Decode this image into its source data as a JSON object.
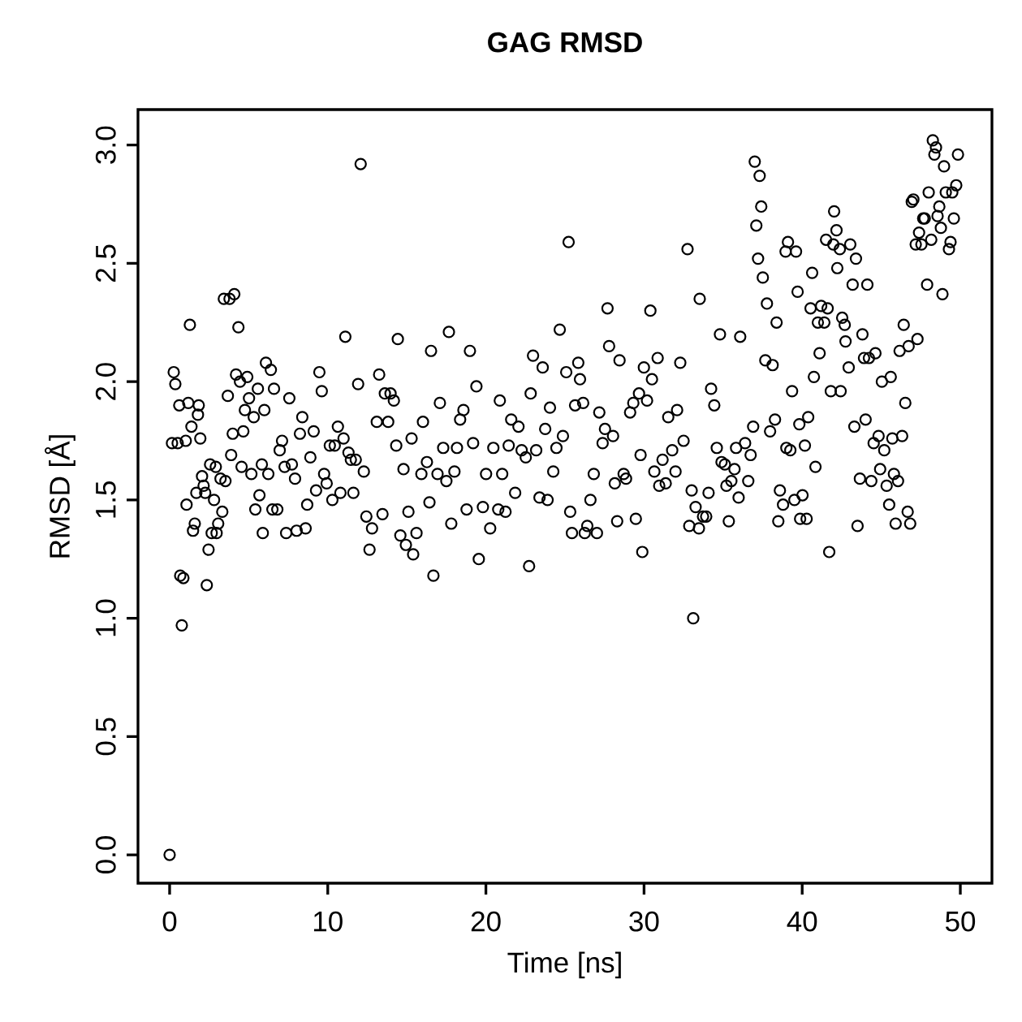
{
  "chart_data": {
    "type": "scatter",
    "title": "GAG RMSD",
    "xlabel": "Time [ns]",
    "ylabel": "RMSD [Å]",
    "color": "#000000",
    "marker": "circle",
    "xlim": [
      -2,
      52
    ],
    "ylim": [
      -0.12,
      3.15
    ],
    "xticks": [
      0,
      10,
      20,
      30,
      40,
      50
    ],
    "yticks": [
      {
        "value": 0,
        "label": "0.0"
      },
      {
        "value": 0.5,
        "label": "0.5"
      },
      {
        "value": 1,
        "label": "1.0"
      },
      {
        "value": 1.5,
        "label": "1.5"
      },
      {
        "value": 2,
        "label": "2.0"
      },
      {
        "value": 2.5,
        "label": "2.5"
      },
      {
        "value": 3,
        "label": "3.0"
      }
    ],
    "x": [
      0,
      0.15,
      0.26,
      0.36,
      0.51,
      0.61,
      0.67,
      0.77,
      0.87,
      1.02,
      1.07,
      1.18,
      1.28,
      1.38,
      1.48,
      1.59,
      1.69,
      1.79,
      1.84,
      1.94,
      2.05,
      2.15,
      2.25,
      2.35,
      2.46,
      2.56,
      2.66,
      2.81,
      2.92,
      2.97,
      3.07,
      3.22,
      3.33,
      3.43,
      3.53,
      3.68,
      3.79,
      3.89,
      3.99,
      4.09,
      4.2,
      4.35,
      4.45,
      4.55,
      4.66,
      4.76,
      4.91,
      5.02,
      5.17,
      5.32,
      5.42,
      5.58,
      5.68,
      5.83,
      5.89,
      5.99,
      6.09,
      6.24,
      6.4,
      6.5,
      6.6,
      6.81,
      6.96,
      7.11,
      7.27,
      7.37,
      7.57,
      7.73,
      7.93,
      8.03,
      8.24,
      8.39,
      8.6,
      8.7,
      8.9,
      9.11,
      9.26,
      9.47,
      9.62,
      9.77,
      9.93,
      10.13,
      10.29,
      10.44,
      10.64,
      10.8,
      11.0,
      11.11,
      11.31,
      11.46,
      11.62,
      11.77,
      11.92,
      12.08,
      12.28,
      12.44,
      12.64,
      12.8,
      13.1,
      13.25,
      13.46,
      13.61,
      13.82,
      13.97,
      14.18,
      14.33,
      14.43,
      14.59,
      14.79,
      14.94,
      15.1,
      15.3,
      15.4,
      15.61,
      15.92,
      16.02,
      16.27,
      16.43,
      16.53,
      16.68,
      16.94,
      17.09,
      17.3,
      17.5,
      17.66,
      17.81,
      18.01,
      18.17,
      18.37,
      18.58,
      18.78,
      18.99,
      19.19,
      19.4,
      19.55,
      19.81,
      20.01,
      20.27,
      20.47,
      20.78,
      20.88,
      21.03,
      21.24,
      21.44,
      21.6,
      21.85,
      22.06,
      22.26,
      22.52,
      22.73,
      22.83,
      22.98,
      23.18,
      23.39,
      23.59,
      23.75,
      23.9,
      24.05,
      24.26,
      24.46,
      24.67,
      24.87,
      25.08,
      25.23,
      25.33,
      25.44,
      25.64,
      25.84,
      25.95,
      26.15,
      26.25,
      26.41,
      26.61,
      26.82,
      27.02,
      27.17,
      27.38,
      27.53,
      27.69,
      27.79,
      28.04,
      28.15,
      28.3,
      28.45,
      28.71,
      28.86,
      29.12,
      29.32,
      29.48,
      29.68,
      29.78,
      29.89,
      29.99,
      30.19,
      30.4,
      30.5,
      30.65,
      30.86,
      30.96,
      31.17,
      31.37,
      31.53,
      31.78,
      31.99,
      32.09,
      32.29,
      32.5,
      32.75,
      32.86,
      33.01,
      33.11,
      33.26,
      33.47,
      33.52,
      33.73,
      33.93,
      34.08,
      34.24,
      34.44,
      34.6,
      34.8,
      34.9,
      35.11,
      35.21,
      35.36,
      35.52,
      35.72,
      35.82,
      35.98,
      36.08,
      36.39,
      36.59,
      36.74,
      36.9,
      37.0,
      37.1,
      37.21,
      37.31,
      37.41,
      37.51,
      37.67,
      37.77,
      37.97,
      38.13,
      38.28,
      38.38,
      38.49,
      38.59,
      38.79,
      38.95,
      39.0,
      39.1,
      39.25,
      39.36,
      39.51,
      39.61,
      39.71,
      39.82,
      39.87,
      40.02,
      40.17,
      40.28,
      40.38,
      40.53,
      40.63,
      40.74,
      40.84,
      40.99,
      41.1,
      41.2,
      41.4,
      41.51,
      41.61,
      41.71,
      41.81,
      41.97,
      42.02,
      42.17,
      42.22,
      42.38,
      42.43,
      42.53,
      42.69,
      42.74,
      42.94,
      43.04,
      43.19,
      43.3,
      43.4,
      43.5,
      43.65,
      43.81,
      43.91,
      44.01,
      44.12,
      44.22,
      44.37,
      44.52,
      44.63,
      44.83,
      44.93,
      45.04,
      45.19,
      45.34,
      45.5,
      45.6,
      45.7,
      45.8,
      45.91,
      46.06,
      46.16,
      46.32,
      46.42,
      46.52,
      46.67,
      46.73,
      46.83,
      46.93,
      47.03,
      47.18,
      47.29,
      47.39,
      47.54,
      47.65,
      47.75,
      47.9,
      48.0,
      48.16,
      48.26,
      48.36,
      48.46,
      48.56,
      48.67,
      48.77,
      48.87,
      48.97,
      49.08,
      49.28,
      49.38,
      49.49,
      49.59,
      49.74,
      49.85
    ],
    "values": [
      0,
      1.74,
      2.04,
      1.99,
      1.74,
      1.9,
      1.18,
      0.97,
      1.17,
      1.75,
      1.48,
      1.91,
      2.24,
      1.81,
      1.37,
      1.4,
      1.53,
      1.86,
      1.9,
      1.76,
      1.6,
      1.56,
      1.53,
      1.14,
      1.29,
      1.65,
      1.36,
      1.5,
      1.64,
      1.36,
      1.4,
      1.59,
      1.45,
      2.35,
      1.58,
      1.94,
      2.35,
      1.69,
      1.78,
      2.37,
      2.03,
      2.23,
      2.0,
      1.64,
      1.79,
      1.88,
      2.02,
      1.93,
      1.61,
      1.85,
      1.46,
      1.97,
      1.52,
      1.65,
      1.36,
      1.88,
      2.08,
      1.61,
      2.05,
      1.46,
      1.97,
      1.46,
      1.71,
      1.75,
      1.64,
      1.36,
      1.93,
      1.65,
      1.59,
      1.37,
      1.78,
      1.85,
      1.38,
      1.48,
      1.68,
      1.79,
      1.54,
      2.04,
      1.96,
      1.61,
      1.57,
      1.73,
      1.5,
      1.73,
      1.81,
      1.53,
      1.76,
      2.19,
      1.7,
      1.67,
      1.53,
      1.67,
      1.99,
      2.92,
      1.62,
      1.43,
      1.29,
      1.38,
      1.83,
      2.03,
      1.44,
      1.95,
      1.83,
      1.95,
      1.92,
      1.73,
      2.18,
      1.35,
      1.63,
      1.31,
      1.45,
      1.76,
      1.27,
      1.36,
      1.61,
      1.83,
      1.66,
      1.49,
      2.13,
      1.18,
      1.61,
      1.91,
      1.72,
      1.58,
      2.21,
      1.4,
      1.62,
      1.72,
      1.84,
      1.88,
      1.46,
      2.13,
      1.74,
      1.98,
      1.25,
      1.47,
      1.61,
      1.38,
      1.72,
      1.46,
      1.92,
      1.61,
      1.45,
      1.73,
      1.84,
      1.53,
      1.81,
      1.71,
      1.68,
      1.22,
      1.95,
      2.11,
      1.71,
      1.51,
      2.06,
      1.8,
      1.5,
      1.89,
      1.62,
      1.72,
      2.22,
      1.77,
      2.04,
      2.59,
      1.45,
      1.36,
      1.9,
      2.08,
      2.01,
      1.91,
      1.36,
      1.39,
      1.5,
      1.61,
      1.36,
      1.87,
      1.74,
      1.8,
      2.31,
      2.15,
      1.77,
      1.57,
      1.41,
      2.09,
      1.61,
      1.59,
      1.87,
      1.91,
      1.42,
      1.95,
      1.69,
      1.28,
      2.06,
      1.92,
      2.3,
      2.01,
      1.62,
      2.1,
      1.56,
      1.67,
      1.57,
      1.85,
      1.71,
      1.62,
      1.88,
      2.08,
      1.75,
      2.56,
      1.39,
      1.54,
      1.0,
      1.47,
      1.38,
      2.35,
      1.43,
      1.43,
      1.53,
      1.97,
      1.9,
      1.72,
      2.2,
      1.66,
      1.65,
      1.56,
      1.41,
      1.58,
      1.63,
      1.72,
      1.51,
      2.19,
      1.74,
      1.58,
      1.69,
      1.81,
      2.93,
      2.66,
      2.52,
      2.87,
      2.74,
      2.44,
      2.09,
      2.33,
      1.79,
      2.07,
      1.84,
      2.25,
      1.41,
      1.54,
      1.48,
      2.55,
      1.72,
      2.59,
      1.71,
      1.96,
      1.5,
      2.55,
      2.38,
      1.82,
      1.42,
      1.52,
      1.73,
      1.42,
      1.85,
      2.31,
      2.46,
      2.02,
      1.64,
      2.25,
      2.12,
      2.32,
      2.25,
      2.6,
      2.31,
      1.28,
      1.96,
      2.58,
      2.72,
      2.64,
      2.48,
      2.56,
      1.96,
      2.27,
      2.24,
      2.17,
      2.06,
      2.58,
      2.41,
      1.81,
      2.52,
      1.39,
      1.59,
      2.2,
      2.1,
      1.84,
      2.41,
      2.1,
      1.58,
      1.74,
      2.12,
      1.77,
      1.63,
      2.0,
      1.71,
      1.56,
      1.48,
      2.02,
      1.76,
      1.61,
      1.4,
      1.58,
      2.13,
      1.77,
      2.24,
      1.91,
      1.45,
      2.15,
      1.4,
      2.76,
      2.77,
      2.58,
      2.18,
      2.63,
      2.58,
      2.69,
      2.69,
      2.41,
      2.8,
      2.6,
      3.02,
      2.96,
      2.99,
      2.7,
      2.74,
      2.65,
      2.37,
      2.91,
      2.8,
      2.56,
      2.59,
      2.8,
      2.69,
      2.83,
      2.96
    ]
  }
}
